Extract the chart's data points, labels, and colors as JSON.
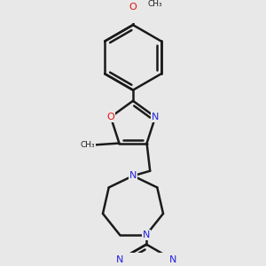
{
  "background_color": "#e8e8e8",
  "bond_color": "#1a1a1a",
  "bond_width": 1.8,
  "atom_colors": {
    "N": "#2222dd",
    "O": "#dd1111",
    "C": "#1a1a1a"
  },
  "font_size": 8,
  "figsize": [
    3.0,
    3.0
  ],
  "dpi": 100,
  "xlim": [
    -1.8,
    1.8
  ],
  "ylim": [
    -3.8,
    2.2
  ]
}
